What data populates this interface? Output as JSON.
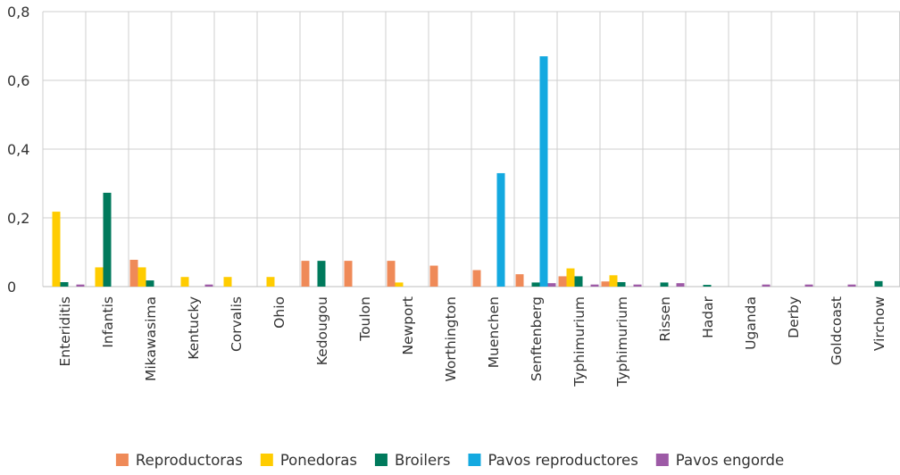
{
  "chart_data": {
    "type": "bar",
    "categories": [
      "Enteriditis",
      "Infantis",
      "Mikawasima",
      "Kentucky",
      "Corvalis",
      "Ohio",
      "Kedougou",
      "Toulon",
      "Newport",
      "Worthington",
      "Muenchen",
      "Senftenberg",
      "Typhimurium",
      "Typhimurium",
      "Rissen",
      "Hadar",
      "Uganda",
      "Derby",
      "Goldcoast",
      "Virchow"
    ],
    "series": [
      {
        "name": "Reproductoras",
        "color": "#ef8a58",
        "values": [
          0,
          0,
          0.078,
          0,
          0,
          0,
          0.075,
          0.075,
          0.075,
          0.061,
          0.048,
          0.036,
          0.03,
          0.015,
          0,
          0,
          0,
          0,
          0,
          0
        ]
      },
      {
        "name": "Ponedoras",
        "color": "#ffcc00",
        "values": [
          0.218,
          0.056,
          0.056,
          0.028,
          0.028,
          0.028,
          0,
          0,
          0.012,
          0,
          0,
          0,
          0.053,
          0.033,
          0,
          0,
          0,
          0,
          0,
          0
        ]
      },
      {
        "name": "Broilers",
        "color": "#007a5c",
        "values": [
          0.013,
          0.273,
          0.018,
          0,
          0,
          0,
          0.075,
          0,
          0,
          0,
          0,
          0.012,
          0.03,
          0.013,
          0.012,
          0.005,
          0,
          0,
          0,
          0.016
        ]
      },
      {
        "name": "Pavos reproductores",
        "color": "#14a9e0",
        "values": [
          0,
          0,
          0,
          0,
          0,
          0,
          0,
          0,
          0,
          0,
          0.33,
          0.67,
          0,
          0,
          0,
          0,
          0,
          0,
          0,
          0
        ]
      },
      {
        "name": "Pavos engorde",
        "color": "#9d5aa6",
        "values": [
          0.006,
          0,
          0,
          0.006,
          0,
          0,
          0,
          0,
          0,
          0,
          0,
          0.01,
          0.006,
          0.006,
          0.01,
          0,
          0.006,
          0.006,
          0.006,
          0
        ]
      }
    ],
    "yticks": [
      "0",
      "0,2",
      "0,4",
      "0,6",
      "0,8"
    ],
    "ylim": [
      0,
      0.8
    ],
    "grid": true,
    "legend_position": "bottom"
  }
}
